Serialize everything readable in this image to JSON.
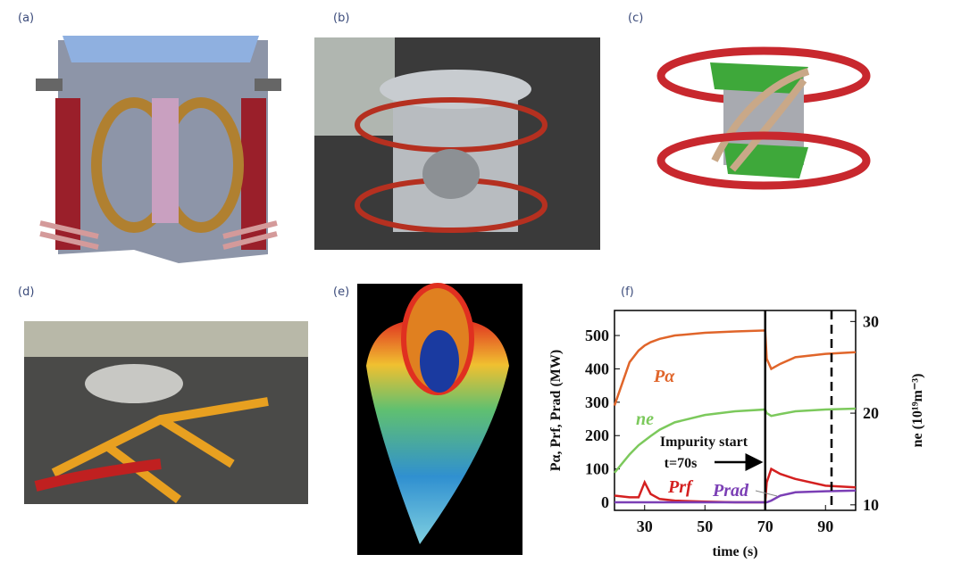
{
  "panels": [
    {
      "label": "(a)"
    },
    {
      "label": "(b)"
    },
    {
      "label": "(c)"
    },
    {
      "label": "(d)"
    },
    {
      "label": "(e)"
    },
    {
      "label": "(f)"
    }
  ],
  "chart_data": {
    "type": "line",
    "xlabel": "time (s)",
    "ylabel": "Pα, Prf, Prad (MW)",
    "y2label": "ne (10¹⁹m⁻³)",
    "x": [
      20,
      25,
      28,
      30,
      32,
      35,
      40,
      50,
      60,
      70,
      70.5,
      72,
      75,
      80,
      90,
      100
    ],
    "xlim": [
      20,
      100
    ],
    "xticks": [
      30,
      50,
      70,
      90
    ],
    "ylim": [
      -24,
      575
    ],
    "yticks": [
      0,
      100,
      200,
      300,
      400,
      500
    ],
    "y2lim": [
      9.4,
      31.2
    ],
    "y2ticks": [
      10,
      20,
      30
    ],
    "series": [
      {
        "name": "Pα",
        "color": "#e0652a",
        "values": [
          290,
          420,
          455,
          470,
          480,
          490,
          500,
          508,
          512,
          515,
          430,
          400,
          415,
          435,
          445,
          450
        ]
      },
      {
        "name": "ne",
        "color": "#7cc95c",
        "axis": "y2",
        "values": [
          13.5,
          15.5,
          16.5,
          17,
          17.5,
          18.2,
          19,
          19.8,
          20.2,
          20.4,
          20,
          19.7,
          19.9,
          20.2,
          20.4,
          20.5
        ]
      },
      {
        "name": "Prf",
        "color": "#d42020",
        "values": [
          20,
          15,
          15,
          60,
          25,
          10,
          5,
          2,
          0,
          0,
          60,
          100,
          85,
          70,
          50,
          45
        ]
      },
      {
        "name": "Prad",
        "color": "#7b3fb5",
        "values": [
          0,
          0,
          0,
          0,
          0,
          0,
          0,
          0,
          0,
          0,
          0,
          5,
          20,
          30,
          33,
          35
        ]
      }
    ],
    "vlines": [
      {
        "x": 70,
        "style": "solid"
      },
      {
        "x": 92,
        "style": "dashed"
      }
    ],
    "annotations": [
      "Impurity start",
      "t=70s"
    ]
  }
}
